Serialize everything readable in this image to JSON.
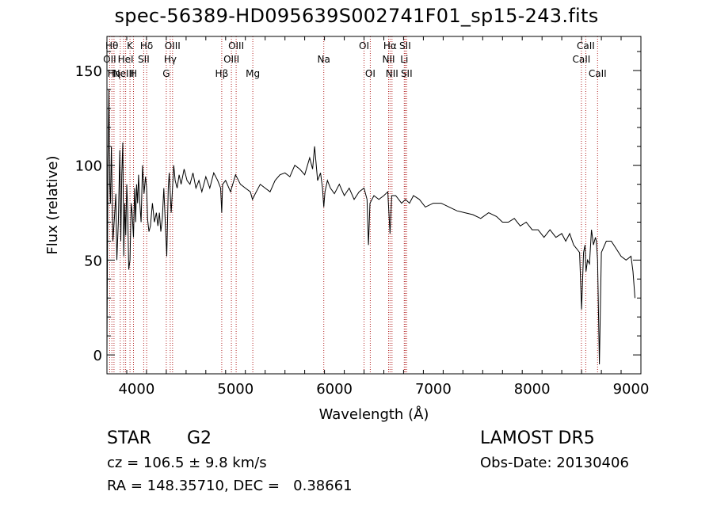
{
  "chart_data": {
    "type": "line",
    "title": "spec-56389-HD095639S002741F01_sp15-243.fits",
    "xlabel": "Wavelength (Å)",
    "ylabel": "Flux (relative)",
    "xlim": [
      3700,
      9100
    ],
    "ylim": [
      -10,
      168
    ],
    "x_ticks": [
      4000,
      5000,
      6000,
      7000,
      8000,
      9000
    ],
    "y_ticks": [
      0,
      50,
      100,
      150
    ],
    "series": [
      {
        "x": [
          3700,
          3710,
          3720,
          3728,
          3735,
          3745,
          3760,
          3775,
          3790,
          3800,
          3815,
          3830,
          3840,
          3850,
          3860,
          3870,
          3880,
          3890,
          3900,
          3910,
          3920,
          3933,
          3945,
          3955,
          3968,
          3980,
          3990,
          4000,
          4010,
          4020,
          4030,
          4045,
          4060,
          4075,
          4090,
          4101,
          4110,
          4125,
          4140,
          4160,
          4180,
          4200,
          4215,
          4230,
          4245,
          4260,
          4275,
          4290,
          4305,
          4320,
          4330,
          4340,
          4350,
          4360,
          4375,
          4390,
          4410,
          4430,
          4450,
          4480,
          4510,
          4540,
          4570,
          4600,
          4630,
          4660,
          4700,
          4740,
          4780,
          4820,
          4850,
          4861,
          4870,
          4900,
          4950,
          5000,
          5050,
          5100,
          5150,
          5172,
          5200,
          5250,
          5300,
          5350,
          5400,
          5450,
          5500,
          5550,
          5600,
          5650,
          5700,
          5750,
          5780,
          5800,
          5830,
          5860,
          5880,
          5893,
          5905,
          5930,
          5960,
          6000,
          6050,
          6100,
          6150,
          6200,
          6250,
          6300,
          6330,
          6345,
          6360,
          6400,
          6450,
          6500,
          6540,
          6563,
          6580,
          6620,
          6680,
          6720,
          6760,
          6800,
          6860,
          6920,
          7000,
          7080,
          7160,
          7240,
          7320,
          7400,
          7480,
          7560,
          7640,
          7700,
          7760,
          7820,
          7880,
          7940,
          8000,
          8060,
          8120,
          8180,
          8240,
          8300,
          8340,
          8380,
          8420,
          8450,
          8480,
          8500,
          8520,
          8535,
          8545,
          8560,
          8580,
          8600,
          8620,
          8640,
          8650,
          8662,
          8680,
          8700,
          8750,
          8800,
          8850,
          8900,
          8950,
          9000,
          9020,
          9040
        ],
        "y": [
          1,
          100,
          140,
          90,
          80,
          110,
          60,
          72,
          85,
          50,
          70,
          108,
          60,
          95,
          112,
          52,
          80,
          63,
          90,
          76,
          45,
          50,
          80,
          75,
          62,
          88,
          70,
          90,
          80,
          95,
          82,
          70,
          100,
          85,
          94,
          88,
          72,
          65,
          68,
          80,
          70,
          75,
          68,
          75,
          65,
          72,
          88,
          70,
          52,
          88,
          96,
          85,
          75,
          85,
          100,
          92,
          88,
          95,
          90,
          98,
          92,
          90,
          96,
          88,
          92,
          86,
          94,
          88,
          96,
          92,
          88,
          75,
          90,
          92,
          86,
          95,
          90,
          88,
          86,
          82,
          85,
          90,
          88,
          86,
          92,
          95,
          96,
          94,
          100,
          98,
          95,
          104,
          98,
          110,
          92,
          96,
          88,
          78,
          86,
          92,
          88,
          85,
          90,
          84,
          88,
          82,
          86,
          88,
          82,
          58,
          80,
          84,
          82,
          84,
          86,
          64,
          84,
          84,
          80,
          82,
          80,
          84,
          82,
          78,
          80,
          80,
          78,
          76,
          75,
          74,
          72,
          75,
          73,
          70,
          70,
          72,
          68,
          70,
          66,
          66,
          62,
          66,
          62,
          64,
          60,
          64,
          58,
          56,
          54,
          24,
          54,
          58,
          44,
          50,
          48,
          66,
          58,
          62,
          60,
          50,
          -5,
          54,
          60,
          60,
          56,
          52,
          50,
          52,
          44,
          30
        ]
      }
    ],
    "lines": [
      {
        "x": 3727,
        "labels": [
          "OII"
        ],
        "row": 2
      },
      {
        "x": 3750,
        "labels": [
          "Hθ"
        ],
        "row": 1
      },
      {
        "x": 3771,
        "labels": [
          "Hη"
        ],
        "row": 3
      },
      {
        "x": 3835,
        "labels": [],
        "row": 0
      },
      {
        "x": 3869,
        "labels": [
          "NeIII"
        ],
        "row": 3
      },
      {
        "x": 3889,
        "labels": [
          "HeI"
        ],
        "row": 2
      },
      {
        "x": 3933,
        "labels": [
          "K"
        ],
        "row": 1
      },
      {
        "x": 3968,
        "labels": [
          "H"
        ],
        "row": 3
      },
      {
        "x": 4072,
        "labels": [
          "SII"
        ],
        "row": 2
      },
      {
        "x": 4101,
        "labels": [
          "Hδ"
        ],
        "row": 1
      },
      {
        "x": 4300,
        "labels": [
          "G"
        ],
        "row": 3
      },
      {
        "x": 4340,
        "labels": [
          "Hγ"
        ],
        "row": 2
      },
      {
        "x": 4363,
        "labels": [
          "OIII"
        ],
        "row": 1
      },
      {
        "x": 4861,
        "labels": [
          "Hβ"
        ],
        "row": 3
      },
      {
        "x": 4959,
        "labels": [
          "OIII"
        ],
        "row": 2
      },
      {
        "x": 5007,
        "labels": [
          "OIII"
        ],
        "row": 1
      },
      {
        "x": 5175,
        "labels": [
          "Mg"
        ],
        "row": 3
      },
      {
        "x": 5893,
        "labels": [
          "Na"
        ],
        "row": 2
      },
      {
        "x": 6300,
        "labels": [
          "OI"
        ],
        "row": 1
      },
      {
        "x": 6363,
        "labels": [
          "OI"
        ],
        "row": 3
      },
      {
        "x": 6548,
        "labels": [
          "NII"
        ],
        "row": 2
      },
      {
        "x": 6563,
        "labels": [
          "Hα"
        ],
        "row": 1
      },
      {
        "x": 6583,
        "labels": [
          "NII"
        ],
        "row": 3
      },
      {
        "x": 6707,
        "labels": [
          "Li"
        ],
        "row": 2
      },
      {
        "x": 6716,
        "labels": [
          "SII"
        ],
        "row": 1
      },
      {
        "x": 6731,
        "labels": [
          "SII"
        ],
        "row": 3
      },
      {
        "x": 8498,
        "labels": [
          "CaII"
        ],
        "row": 2
      },
      {
        "x": 8542,
        "labels": [
          "CaII"
        ],
        "row": 1
      },
      {
        "x": 8662,
        "labels": [
          "CaII"
        ],
        "row": 3
      }
    ],
    "colors": {
      "spectrum": "#000000",
      "line_marker": "#b22222",
      "axes": "#000000"
    }
  },
  "info": {
    "object_class": "STAR",
    "subclass": "G2",
    "survey": "LAMOST DR5",
    "redshift": "cz = 106.5 ± 9.8 km/s",
    "obs_date": "Obs-Date: 20130406",
    "coords": "RA = 148.35710, DEC =   0.38661"
  }
}
